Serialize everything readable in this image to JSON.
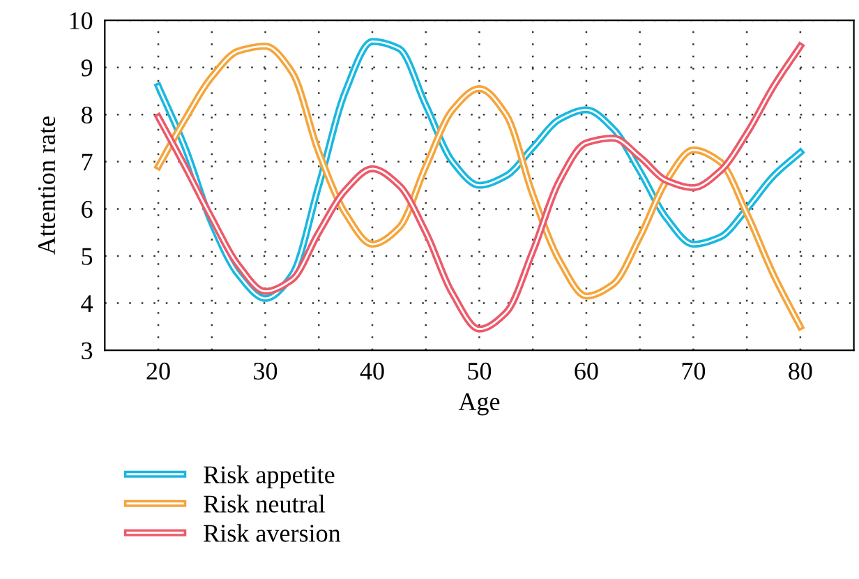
{
  "chart_data": {
    "type": "line",
    "xlabel": "Age",
    "ylabel": "Attention rate",
    "x": [
      20,
      22.5,
      25,
      27.5,
      30,
      32.5,
      35,
      37.5,
      40,
      42.5,
      45,
      47.5,
      50,
      52.5,
      55,
      57.5,
      60,
      62.5,
      65,
      67.5,
      70,
      72.5,
      75,
      77.5,
      80
    ],
    "series": [
      {
        "name": "Risk appetite",
        "color": "#1ab8e0",
        "values": [
          8.6,
          7.3,
          5.7,
          4.6,
          4.1,
          4.6,
          6.5,
          8.5,
          9.55,
          9.4,
          8.2,
          7.0,
          6.5,
          6.7,
          7.3,
          7.9,
          8.1,
          7.7,
          6.8,
          5.8,
          5.25,
          5.4,
          6.0,
          6.7,
          7.2
        ]
      },
      {
        "name": "Risk neutral",
        "color": "#f5a53c",
        "values": [
          6.9,
          7.9,
          8.8,
          9.35,
          9.45,
          8.9,
          7.2,
          5.9,
          5.25,
          5.6,
          6.9,
          8.1,
          8.55,
          8.0,
          6.3,
          4.9,
          4.15,
          4.4,
          5.4,
          6.6,
          7.25,
          7.0,
          5.9,
          4.6,
          3.5
        ]
      },
      {
        "name": "Risk aversion",
        "color": "#ec5a6a",
        "values": [
          7.95,
          6.9,
          5.8,
          4.8,
          4.25,
          4.5,
          5.5,
          6.4,
          6.85,
          6.5,
          5.5,
          4.2,
          3.45,
          3.8,
          5.1,
          6.6,
          7.4,
          7.5,
          7.1,
          6.6,
          6.45,
          6.8,
          7.6,
          8.6,
          9.45
        ]
      }
    ],
    "xlim": [
      15,
      85
    ],
    "ylim": [
      3,
      10
    ],
    "xticks": [
      20,
      {
        "value": 25,
        "label": null
      },
      30,
      {
        "value": 35,
        "label": null
      },
      40,
      {
        "value": 45,
        "label": null
      },
      50,
      {
        "value": 55,
        "label": null
      },
      60,
      {
        "value": 65,
        "label": null
      },
      70,
      {
        "value": 75,
        "label": null
      },
      80
    ],
    "yticks": [
      3,
      4,
      5,
      6,
      7,
      8,
      9,
      10
    ],
    "grid": true,
    "legend": "bottom left",
    "marker": "none",
    "line_style": "solid"
  }
}
